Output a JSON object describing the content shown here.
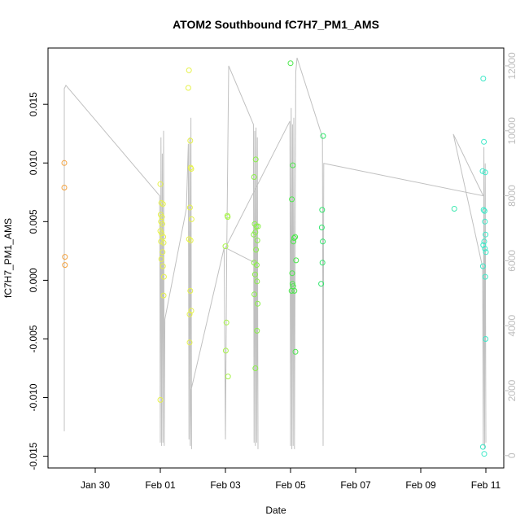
{
  "chart_data": {
    "type": "scatter",
    "title": "ATOM2 Southbound fC7H7_PM1_AMS",
    "xlabel": "Date",
    "ylabel": "fC7H7_PM1_AMS",
    "x_ticks": [
      "Jan 30",
      "Feb 01",
      "Feb 03",
      "Feb 05",
      "Feb 07",
      "Feb 09",
      "Feb 11"
    ],
    "x_tick_days": [
      0,
      2,
      4,
      6,
      8,
      10,
      12
    ],
    "xlim_days": [
      -1.45,
      12.55
    ],
    "y_ticks": [
      -0.015,
      -0.01,
      -0.005,
      0.0,
      0.005,
      0.01,
      0.015
    ],
    "y_tick_labels": [
      "-0.015",
      "-0.010",
      "-0.005",
      "0.000",
      "0.005",
      "0.010",
      "0.015"
    ],
    "ylim": [
      -0.016,
      0.0198
    ],
    "right_ticks": [
      0,
      2000,
      4000,
      6000,
      8000,
      10000,
      12000
    ],
    "right_ylim": [
      -380,
      12550
    ],
    "grid": false,
    "legend": "none",
    "points": [
      {
        "x": -0.95,
        "y": 0.01,
        "color": "#f4a340"
      },
      {
        "x": -0.95,
        "y": 0.0079,
        "color": "#f4a340"
      },
      {
        "x": -0.93,
        "y": 0.002,
        "color": "#f4a340"
      },
      {
        "x": -0.93,
        "y": 0.0013,
        "color": "#f4a340"
      },
      {
        "x": 2.0,
        "y": 0.0082,
        "color": "#e6f24a"
      },
      {
        "x": 2.03,
        "y": 0.0066,
        "color": "#e6f24a"
      },
      {
        "x": 2.08,
        "y": 0.0065,
        "color": "#e6f24a"
      },
      {
        "x": 2.01,
        "y": 0.0056,
        "color": "#e6f24a"
      },
      {
        "x": 2.05,
        "y": 0.0054,
        "color": "#e6f24a"
      },
      {
        "x": 2.02,
        "y": 0.005,
        "color": "#e6f24a"
      },
      {
        "x": 2.06,
        "y": 0.0048,
        "color": "#e6f24a"
      },
      {
        "x": 2.0,
        "y": 0.0042,
        "color": "#e6f24a"
      },
      {
        "x": 2.04,
        "y": 0.004,
        "color": "#e6f24a"
      },
      {
        "x": 2.09,
        "y": 0.0037,
        "color": "#e6f24a"
      },
      {
        "x": 2.02,
        "y": 0.0033,
        "color": "#e6f24a"
      },
      {
        "x": 2.1,
        "y": 0.0032,
        "color": "#e6f24a"
      },
      {
        "x": 2.07,
        "y": 0.0024,
        "color": "#e6f24a"
      },
      {
        "x": 2.03,
        "y": 0.0018,
        "color": "#e6f24a"
      },
      {
        "x": 2.08,
        "y": 0.0012,
        "color": "#e6f24a"
      },
      {
        "x": 2.11,
        "y": 0.0003,
        "color": "#e6f24a"
      },
      {
        "x": 2.1,
        "y": -0.0013,
        "color": "#e6f24a"
      },
      {
        "x": 2.0,
        "y": -0.0102,
        "color": "#e6f24a"
      },
      {
        "x": 2.88,
        "y": 0.0179,
        "color": "#e6f24a"
      },
      {
        "x": 2.86,
        "y": 0.0164,
        "color": "#e6f24a"
      },
      {
        "x": 2.92,
        "y": 0.0119,
        "color": "#e6f24a"
      },
      {
        "x": 2.93,
        "y": 0.0096,
        "color": "#e6f24a"
      },
      {
        "x": 2.95,
        "y": 0.0095,
        "color": "#e6f24a"
      },
      {
        "x": 2.91,
        "y": 0.0062,
        "color": "#e6f24a"
      },
      {
        "x": 2.96,
        "y": 0.0052,
        "color": "#e6f24a"
      },
      {
        "x": 2.88,
        "y": 0.0035,
        "color": "#e6f24a"
      },
      {
        "x": 2.93,
        "y": 0.0034,
        "color": "#e6f24a"
      },
      {
        "x": 2.92,
        "y": -0.0009,
        "color": "#e6f24a"
      },
      {
        "x": 2.95,
        "y": -0.0026,
        "color": "#e6f24a"
      },
      {
        "x": 2.9,
        "y": -0.0029,
        "color": "#e6f24a"
      },
      {
        "x": 2.9,
        "y": -0.0053,
        "color": "#e6f24a"
      },
      {
        "x": 4.0,
        "y": 0.0029,
        "color": "#a8f44a"
      },
      {
        "x": 4.06,
        "y": 0.0055,
        "color": "#a8f44a"
      },
      {
        "x": 4.07,
        "y": 0.0054,
        "color": "#a8f44a"
      },
      {
        "x": 4.03,
        "y": -0.0036,
        "color": "#a8f44a"
      },
      {
        "x": 4.01,
        "y": -0.006,
        "color": "#a8f44a"
      },
      {
        "x": 4.08,
        "y": -0.0082,
        "color": "#a8f44a"
      },
      {
        "x": 4.88,
        "y": 0.0088,
        "color": "#8af048"
      },
      {
        "x": 4.93,
        "y": 0.0103,
        "color": "#8af048"
      },
      {
        "x": 4.9,
        "y": 0.0048,
        "color": "#8af048"
      },
      {
        "x": 4.95,
        "y": 0.0046,
        "color": "#8af048"
      },
      {
        "x": 5.0,
        "y": 0.0046,
        "color": "#8af048"
      },
      {
        "x": 4.87,
        "y": 0.0039,
        "color": "#8af048"
      },
      {
        "x": 4.92,
        "y": 0.0041,
        "color": "#8af048"
      },
      {
        "x": 4.98,
        "y": 0.0034,
        "color": "#8af048"
      },
      {
        "x": 4.94,
        "y": 0.0026,
        "color": "#8af048"
      },
      {
        "x": 4.88,
        "y": 0.0015,
        "color": "#8af048"
      },
      {
        "x": 4.96,
        "y": 0.0013,
        "color": "#8af048"
      },
      {
        "x": 4.91,
        "y": 0.0005,
        "color": "#8af048"
      },
      {
        "x": 4.97,
        "y": -0.0001,
        "color": "#8af048"
      },
      {
        "x": 4.89,
        "y": -0.0012,
        "color": "#8af048"
      },
      {
        "x": 4.99,
        "y": -0.002,
        "color": "#8af048"
      },
      {
        "x": 4.97,
        "y": -0.0043,
        "color": "#8af048"
      },
      {
        "x": 4.92,
        "y": -0.0075,
        "color": "#8af048"
      },
      {
        "x": 6.0,
        "y": 0.0185,
        "color": "#4ce84c"
      },
      {
        "x": 6.07,
        "y": 0.0098,
        "color": "#4ce84c"
      },
      {
        "x": 6.04,
        "y": 0.0069,
        "color": "#4ce84c"
      },
      {
        "x": 6.14,
        "y": 0.0037,
        "color": "#4ce84c"
      },
      {
        "x": 6.11,
        "y": 0.0036,
        "color": "#4ce84c"
      },
      {
        "x": 6.09,
        "y": 0.0033,
        "color": "#4ce84c"
      },
      {
        "x": 6.17,
        "y": 0.0017,
        "color": "#4ce84c"
      },
      {
        "x": 6.05,
        "y": 0.0006,
        "color": "#4ce84c"
      },
      {
        "x": 6.06,
        "y": -0.0003,
        "color": "#4ce84c"
      },
      {
        "x": 6.08,
        "y": -0.0005,
        "color": "#4ce84c"
      },
      {
        "x": 6.03,
        "y": -0.0009,
        "color": "#4ce84c"
      },
      {
        "x": 6.12,
        "y": -0.0009,
        "color": "#4ce84c"
      },
      {
        "x": 6.15,
        "y": -0.0061,
        "color": "#4ce84c"
      },
      {
        "x": 7.0,
        "y": 0.0123,
        "color": "#2ee66a"
      },
      {
        "x": 6.97,
        "y": 0.006,
        "color": "#2ee66a"
      },
      {
        "x": 6.96,
        "y": 0.0045,
        "color": "#2ee66a"
      },
      {
        "x": 6.99,
        "y": 0.0033,
        "color": "#2ee66a"
      },
      {
        "x": 6.98,
        "y": 0.0015,
        "color": "#2ee66a"
      },
      {
        "x": 6.94,
        "y": -0.0003,
        "color": "#2ee66a"
      },
      {
        "x": 11.03,
        "y": 0.0061,
        "color": "#3ee8b0"
      },
      {
        "x": 11.92,
        "y": 0.0172,
        "color": "#3ee8c8"
      },
      {
        "x": 11.94,
        "y": 0.0118,
        "color": "#3ee8c8"
      },
      {
        "x": 11.9,
        "y": 0.0093,
        "color": "#3ee8c8"
      },
      {
        "x": 11.98,
        "y": 0.0092,
        "color": "#3ee8c8"
      },
      {
        "x": 11.93,
        "y": 0.006,
        "color": "#3ee8c8"
      },
      {
        "x": 11.96,
        "y": 0.0059,
        "color": "#3ee8c8"
      },
      {
        "x": 11.97,
        "y": 0.005,
        "color": "#3ee8c8"
      },
      {
        "x": 11.99,
        "y": 0.0039,
        "color": "#3ee8c8"
      },
      {
        "x": 11.95,
        "y": 0.0033,
        "color": "#3ee8c8"
      },
      {
        "x": 11.92,
        "y": 0.003,
        "color": "#3ee8c8"
      },
      {
        "x": 11.97,
        "y": 0.0027,
        "color": "#3ee8c8"
      },
      {
        "x": 12.0,
        "y": 0.0024,
        "color": "#3ee8c8"
      },
      {
        "x": 11.91,
        "y": 0.0012,
        "color": "#3ee8c8"
      },
      {
        "x": 11.98,
        "y": 0.0003,
        "color": "#3ee8c8"
      },
      {
        "x": 11.99,
        "y": -0.005,
        "color": "#3ee8c8"
      },
      {
        "x": 11.91,
        "y": -0.0142,
        "color": "#3ee8c8"
      },
      {
        "x": 11.95,
        "y": -0.0148,
        "color": "#3ee8c8"
      }
    ],
    "line_series": {
      "color": "#c0c0c0",
      "axis": "right",
      "points": [
        [
          -0.95,
          750
        ],
        [
          -0.95,
          11300
        ],
        [
          -0.9,
          11400
        ],
        [
          1.98,
          8000
        ],
        [
          2.0,
          400
        ],
        [
          2.02,
          9800
        ],
        [
          2.04,
          300
        ],
        [
          2.06,
          9300
        ],
        [
          2.08,
          400
        ],
        [
          2.1,
          10000
        ],
        [
          2.12,
          300
        ],
        [
          2.14,
          4200
        ],
        [
          2.8,
          7600
        ],
        [
          2.86,
          9600
        ],
        [
          2.88,
          500
        ],
        [
          2.9,
          9800
        ],
        [
          2.92,
          300
        ],
        [
          2.94,
          10400
        ],
        [
          2.96,
          200
        ],
        [
          2.94,
          2000
        ],
        [
          3.96,
          6400
        ],
        [
          4.0,
          500
        ],
        [
          4.04,
          6200
        ],
        [
          4.1,
          12000
        ],
        [
          4.86,
          10200
        ],
        [
          4.88,
          400
        ],
        [
          4.9,
          10000
        ],
        [
          4.92,
          300
        ],
        [
          4.94,
          10100
        ],
        [
          4.96,
          400
        ],
        [
          4.98,
          9800
        ],
        [
          5.0,
          200
        ],
        [
          4.98,
          5900
        ],
        [
          4.0,
          6400
        ],
        [
          5.98,
          10300
        ],
        [
          6.0,
          300
        ],
        [
          6.02,
          10700
        ],
        [
          6.04,
          200
        ],
        [
          6.06,
          10200
        ],
        [
          6.08,
          300
        ],
        [
          6.1,
          10400
        ],
        [
          6.12,
          200
        ],
        [
          6.16,
          11800
        ],
        [
          6.2,
          12250
        ],
        [
          6.98,
          9800
        ],
        [
          7.0,
          300
        ],
        [
          7.02,
          9000
        ],
        [
          11.92,
          8000
        ],
        [
          11.0,
          9900
        ],
        [
          11.9,
          5800
        ],
        [
          11.92,
          300
        ],
        [
          11.94,
          9500
        ],
        [
          11.96,
          200
        ],
        [
          11.98,
          9000
        ],
        [
          12.0,
          400
        ]
      ]
    }
  }
}
